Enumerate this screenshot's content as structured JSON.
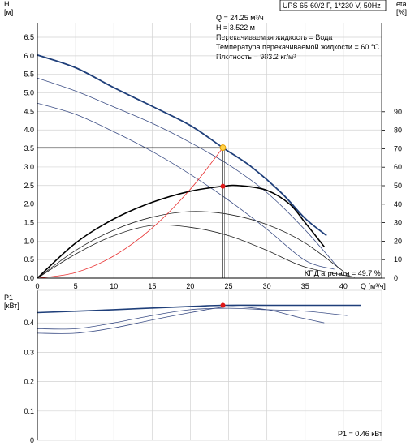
{
  "chart_data": [
    {
      "type": "line",
      "title": "UPS 65-60/2 F, 1*230 V, 50Hz",
      "xlabel": "Q [м³/ч]",
      "ylabel": "H",
      "ylabel_unit": "[м]",
      "y2label": "eta",
      "y2label_unit": "[%]",
      "xlim": [
        0,
        45
      ],
      "ylim": [
        0,
        6.5
      ],
      "y2lim": [
        0,
        90
      ],
      "x_ticks": [
        "0",
        "5",
        "10",
        "15",
        "20",
        "25",
        "30",
        "35",
        "40"
      ],
      "y_ticks": [
        "0.0",
        "0.5",
        "1.0",
        "1.5",
        "2.0",
        "2.5",
        "3.0",
        "3.5",
        "4.0",
        "4.5",
        "5.0",
        "5.5",
        "6.0",
        "6.5"
      ],
      "y2_ticks": [
        "0",
        "10",
        "20",
        "30",
        "40",
        "50",
        "60",
        "70",
        "80",
        "90"
      ],
      "grid": true,
      "info_lines": [
        "Q = 24.25 м³/ч",
        "H = 3.522 м",
        "Перекачиваемая жидкость = Вода",
        "Температура перекачиваемой жидкости = 60 °C",
        "Плотность = 983.2 кг/м³"
      ],
      "efficiency_label": "КПД агрегата = 49.7 %",
      "duty_point": {
        "q": 24.25,
        "h": 3.522
      },
      "efficiency_point": {
        "q": 24.25,
        "eta": 49.7
      },
      "series": [
        {
          "kind": "head",
          "x": [
            0,
            5,
            10,
            15,
            20,
            24.25,
            28,
            32,
            35,
            37.8
          ],
          "y": [
            6.02,
            5.68,
            5.14,
            4.64,
            4.12,
            3.52,
            3.0,
            2.28,
            1.61,
            1.15
          ]
        },
        {
          "kind": "head",
          "x": [
            0,
            5,
            10,
            15,
            20,
            25,
            30,
            35,
            39.5
          ],
          "y": [
            5.4,
            5.05,
            4.62,
            4.18,
            3.66,
            3.06,
            2.31,
            1.3,
            0.24
          ]
        },
        {
          "kind": "head",
          "x": [
            0,
            5,
            10,
            15,
            20,
            25,
            30,
            35,
            38.8
          ],
          "y": [
            4.72,
            4.42,
            3.95,
            3.42,
            2.8,
            2.1,
            1.32,
            0.48,
            0.24
          ]
        },
        {
          "kind": "efficiency",
          "x": [
            0,
            5,
            10,
            15,
            20,
            24.25,
            26.5,
            30,
            33,
            35,
            37.5
          ],
          "y": [
            0,
            19,
            32,
            41,
            47,
            49.7,
            50,
            47.5,
            40,
            30,
            17
          ]
        },
        {
          "kind": "efficiency",
          "x": [
            0,
            5,
            10,
            15,
            20,
            25,
            30,
            35,
            40.5
          ],
          "y": [
            0,
            15,
            26,
            33,
            36,
            34.5,
            29,
            19,
            2
          ]
        },
        {
          "kind": "efficiency",
          "x": [
            0,
            5,
            10,
            15,
            20,
            25,
            30,
            35,
            41.5
          ],
          "y": [
            0,
            13,
            23,
            28.5,
            27.5,
            23,
            15,
            6,
            0.5
          ]
        },
        {
          "kind": "system",
          "x": [
            0,
            5,
            10,
            15,
            20,
            24.25
          ],
          "y": [
            0,
            0.15,
            0.6,
            1.35,
            2.4,
            3.522
          ]
        }
      ]
    },
    {
      "type": "line",
      "ylabel": "P1",
      "ylabel_unit": "[кВт]",
      "xlim": [
        0,
        45
      ],
      "ylim": [
        0,
        0.5
      ],
      "y_ticks": [
        "0",
        "0.1",
        "0.2",
        "0.3",
        "0.4"
      ],
      "grid": true,
      "power_label": "P1 = 0.46 кВт",
      "duty_point": {
        "q": 24.25,
        "p": 0.46
      },
      "series": [
        {
          "kind": "power",
          "x": [
            0,
            10,
            20,
            24.25,
            30,
            35,
            40,
            42.3
          ],
          "y": [
            0.435,
            0.445,
            0.456,
            0.46,
            0.46,
            0.46,
            0.46,
            0.46
          ]
        },
        {
          "kind": "power",
          "x": [
            0,
            5,
            10,
            15,
            20,
            25,
            30,
            35,
            40.5
          ],
          "y": [
            0.38,
            0.38,
            0.4,
            0.425,
            0.445,
            0.45,
            0.445,
            0.44,
            0.425
          ]
        },
        {
          "kind": "power",
          "x": [
            0,
            5,
            10,
            15,
            20,
            25,
            30,
            34,
            37.5
          ],
          "y": [
            0.365,
            0.365,
            0.383,
            0.41,
            0.435,
            0.455,
            0.445,
            0.42,
            0.4
          ]
        }
      ]
    }
  ],
  "colors": {
    "head_main": "#1f3f7a",
    "curve_thin": "#3d4f86",
    "efficiency_main": "#000000",
    "system_curve": "#e83030",
    "duty_point_outer": "#e8a000",
    "duty_point_inner": "#ffd24a",
    "eff_point": "#e01818",
    "grid": "#d2d2d2",
    "axes": "#000000"
  }
}
